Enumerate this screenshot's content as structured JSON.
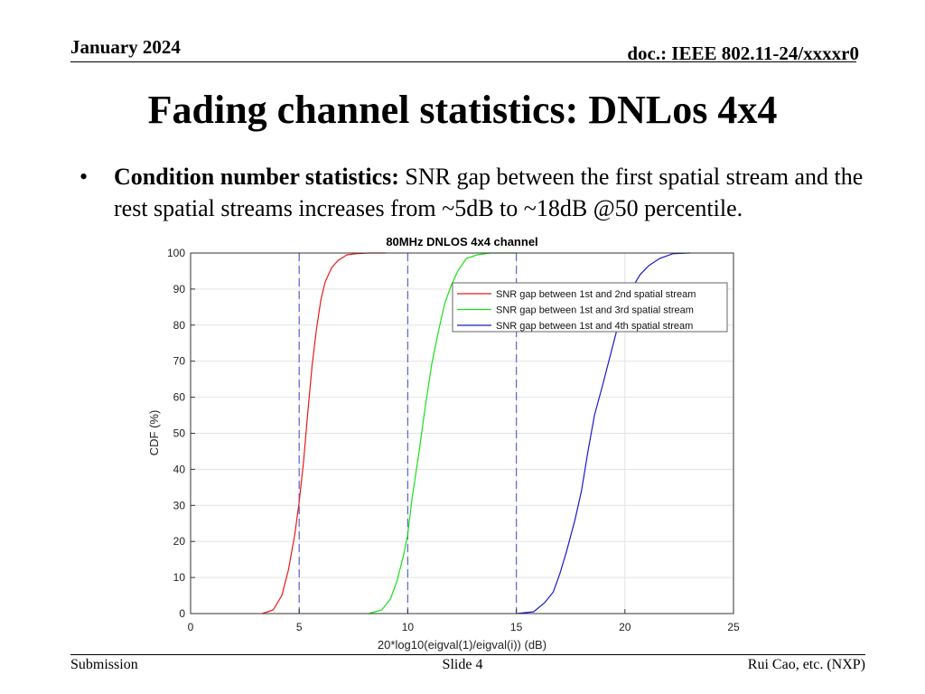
{
  "header": {
    "date": "January 2024",
    "doc": "doc.: IEEE 802.11-24/xxxxr0"
  },
  "slide": {
    "title": "Fading channel statistics: DNLos 4x4",
    "bullet_marker": "•",
    "bullet_bold": "Condition number statistics:",
    "bullet_text": " SNR gap between the first spatial stream and the rest spatial streams increases from ~5dB to ~18dB @50 percentile."
  },
  "footer": {
    "left": "Submission",
    "center": "Slide 4",
    "right": "Rui Cao, etc. (NXP)"
  },
  "chart_data": {
    "type": "line",
    "title": "80MHz DNLOS 4x4 channel",
    "xlabel": "20*log10(eigval(1)/eigval(i)) (dB)",
    "ylabel": "CDF (%)",
    "xlim": [
      0,
      25
    ],
    "ylim": [
      0,
      100
    ],
    "xticks": [
      0,
      5,
      10,
      15,
      20,
      25
    ],
    "yticks": [
      0,
      10,
      20,
      30,
      40,
      50,
      60,
      70,
      80,
      90,
      100
    ],
    "grid": true,
    "legend_position": "top-right",
    "vlines": [
      5,
      10,
      15
    ],
    "series": [
      {
        "name": "SNR gap between 1st and 2nd spatial stream",
        "color": "#e8191a",
        "x": [
          3.3,
          3.8,
          4.2,
          4.5,
          4.8,
          5.0,
          5.2,
          5.4,
          5.6,
          5.8,
          6.0,
          6.2,
          6.5,
          6.8,
          7.2,
          7.6,
          8.2,
          9.0
        ],
        "y": [
          0,
          1,
          5,
          12,
          22,
          31,
          42,
          56,
          69,
          79,
          87,
          92,
          96,
          98,
          99.5,
          99.8,
          100,
          100
        ]
      },
      {
        "name": "SNR gap between 1st and 3rd spatial stream",
        "color": "#19e019",
        "x": [
          8.2,
          8.8,
          9.2,
          9.5,
          9.8,
          10.0,
          10.2,
          10.5,
          10.8,
          11.1,
          11.4,
          11.7,
          12.0,
          12.3,
          12.7,
          13.2,
          13.8,
          15.0
        ],
        "y": [
          0,
          1,
          4,
          9,
          16,
          22,
          32,
          44,
          57,
          69,
          78,
          86,
          91,
          95,
          98.5,
          99.5,
          100,
          100
        ]
      },
      {
        "name": "SNR gap between 1st and 4th spatial stream",
        "color": "#1a1acc",
        "x": [
          15.0,
          15.8,
          16.3,
          16.7,
          17.0,
          17.3,
          17.7,
          18.0,
          18.3,
          18.6,
          19.0,
          19.3,
          19.6,
          20.0,
          20.3,
          20.7,
          21.1,
          21.6,
          22.2,
          23.0
        ],
        "y": [
          0,
          0.5,
          3,
          6,
          11,
          17,
          26,
          34,
          45,
          55,
          64,
          71,
          78,
          85,
          90,
          94,
          96.5,
          98.5,
          99.8,
          100
        ]
      }
    ]
  }
}
